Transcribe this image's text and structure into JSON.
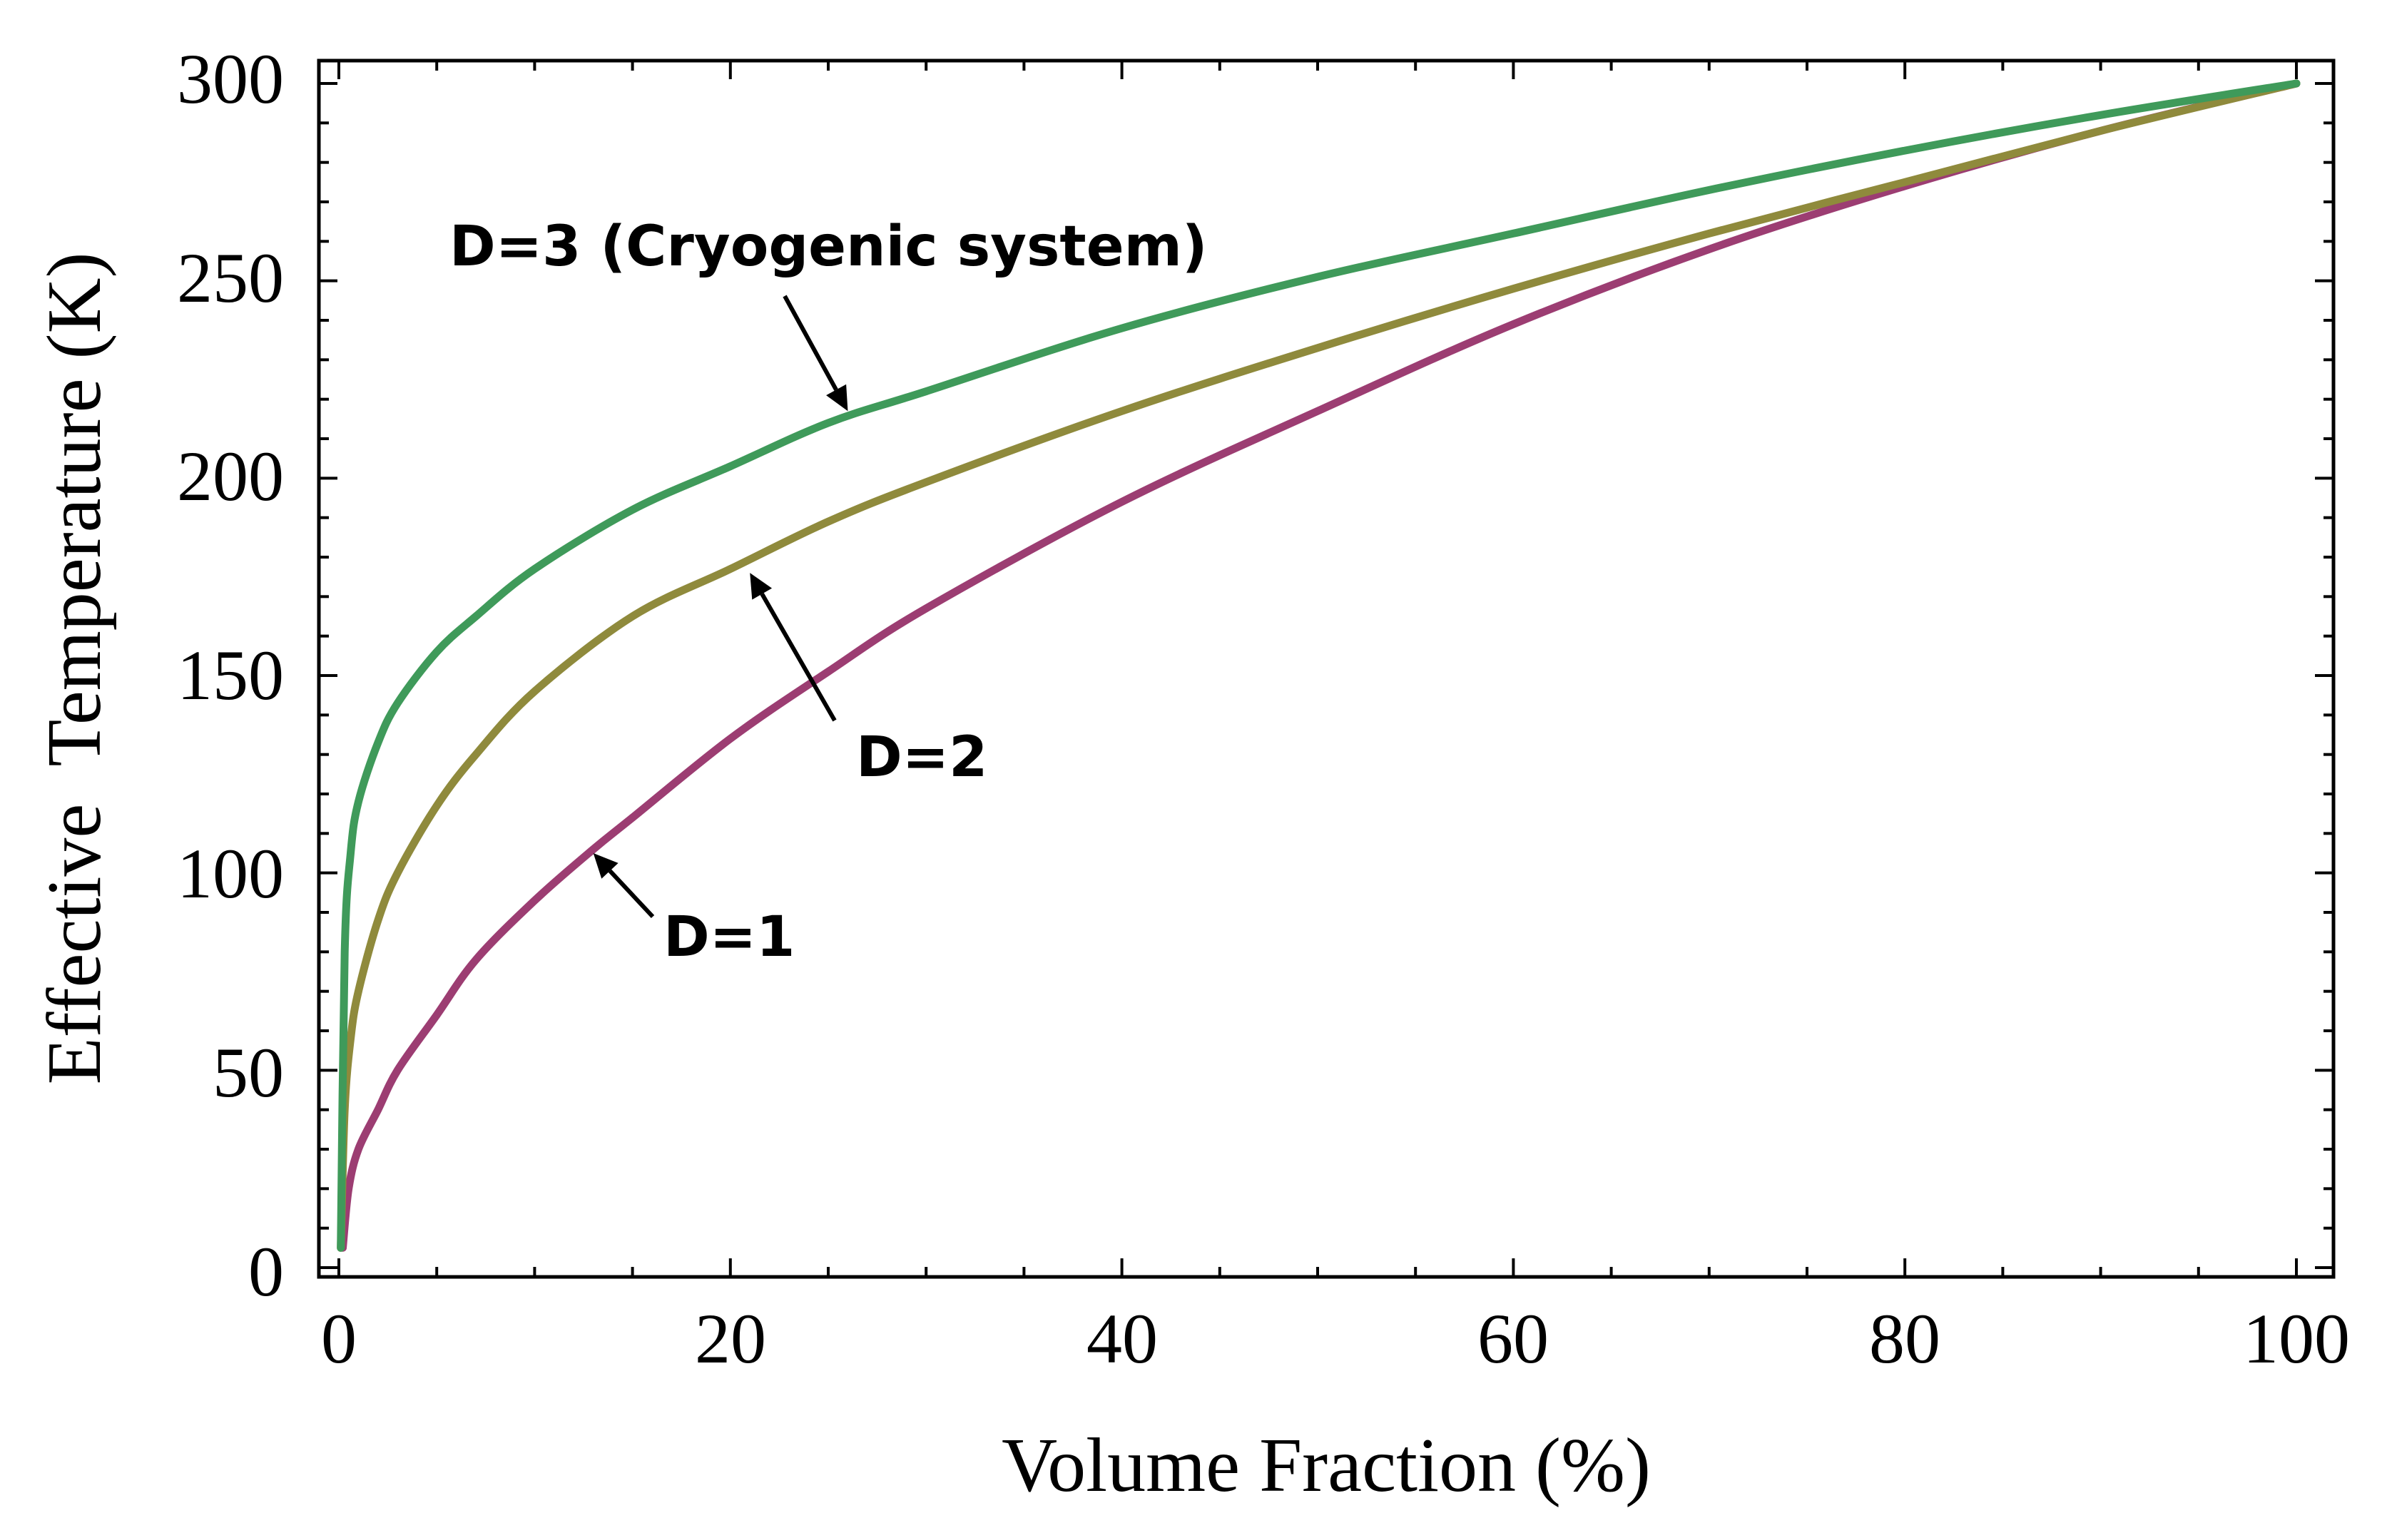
{
  "chart_data": {
    "type": "line",
    "title": "",
    "xlabel": "Volume Fraction (%)",
    "ylabel": "Effective  Temperature (K)",
    "xlim": [
      0,
      100
    ],
    "ylim": [
      0,
      300
    ],
    "x_ticks": [
      0,
      20,
      40,
      60,
      80,
      100
    ],
    "y_ticks": [
      0,
      50,
      100,
      150,
      200,
      250,
      300
    ],
    "x_tick_labels": [
      "0",
      "20",
      "40",
      "60",
      "80",
      "100"
    ],
    "y_tick_labels": [
      "0",
      "50",
      "100",
      "150",
      "200",
      "250",
      "300"
    ],
    "grid": false,
    "series": [
      {
        "name": "D=1",
        "color": "#9c3d72",
        "x": [
          0.2,
          0.5,
          1,
          2,
          3,
          5,
          7,
          10,
          13,
          15,
          20,
          25,
          30,
          40,
          50,
          60,
          70,
          80,
          90,
          100
        ],
        "y": [
          5,
          20,
          30,
          40,
          50,
          64,
          78,
          93,
          106,
          114,
          134,
          151,
          167,
          194,
          217,
          239,
          258,
          274,
          288,
          300
        ]
      },
      {
        "name": "D=2",
        "color": "#8f8a3c",
        "x": [
          0.1,
          0.3,
          0.6,
          1,
          2,
          3,
          5,
          7,
          10,
          15,
          20,
          25,
          30,
          40,
          50,
          60,
          70,
          80,
          90,
          100
        ],
        "y": [
          5,
          40,
          58,
          70,
          88,
          100,
          117,
          130,
          146,
          165,
          177,
          189,
          199,
          217,
          233,
          248,
          262,
          275,
          288,
          300
        ]
      },
      {
        "name": "D=3 (Cryogenic system)",
        "color": "#3f9a5a",
        "x": [
          0.1,
          0.3,
          0.6,
          1,
          2,
          3,
          5,
          7,
          10,
          15,
          20,
          25,
          30,
          40,
          50,
          60,
          70,
          80,
          90,
          100
        ],
        "y": [
          5,
          80,
          105,
          118,
          133,
          143,
          156,
          165,
          177,
          192,
          203,
          214,
          222,
          238,
          251,
          262,
          273,
          283,
          292,
          300
        ]
      }
    ],
    "annotations": [
      {
        "text": "D=3 (Cryogenic system)",
        "target_series": "D=3 (Cryogenic system)",
        "point": [
          26,
          217
        ]
      },
      {
        "text": "D=2",
        "target_series": "D=2",
        "point": [
          21,
          176
        ]
      },
      {
        "text": "D=1",
        "target_series": "D=1",
        "point": [
          13,
          105
        ]
      }
    ]
  }
}
